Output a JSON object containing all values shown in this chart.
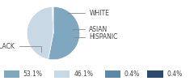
{
  "labels": [
    "BLACK",
    "WHITE",
    "ASIAN",
    "HISPANIC"
  ],
  "values": [
    53.1,
    46.1,
    0.4,
    0.4
  ],
  "colors": [
    "#7fa8c0",
    "#c8d8e4",
    "#5a8aa8",
    "#2c4a6e"
  ],
  "legend_labels": [
    "53.1%",
    "46.1%",
    "0.4%",
    "0.4%"
  ],
  "figsize": [
    2.4,
    1.0
  ],
  "dpi": 100
}
